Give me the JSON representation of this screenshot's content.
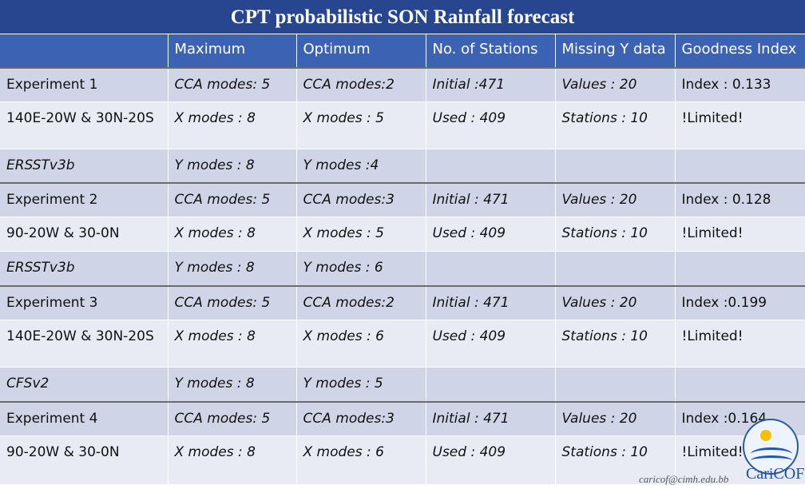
{
  "title": "CPT probabilistic SON Rainfall forecast",
  "headers": [
    "",
    "Maximum",
    "Optimum",
    "No. of Stations",
    "Missing Y data",
    "Goodness Index"
  ],
  "experiments": [
    {
      "rows": [
        [
          "Experiment 1",
          "CCA modes: 5",
          "CCA modes:2",
          "Initial :471",
          "Values : 20",
          "Index : 0.133"
        ],
        [
          "140E-20W & 30N-20S",
          "X modes : 8",
          "X modes : 5",
          "Used : 409",
          "Stations : 10",
          "!Limited!"
        ],
        [
          "ERSSTv3b",
          "Y modes : 8",
          "Y modes :4",
          "",
          "",
          ""
        ]
      ]
    },
    {
      "rows": [
        [
          "Experiment 2",
          "CCA modes: 5",
          "CCA modes:3",
          "Initial : 471",
          "Values : 20",
          "Index : 0.128"
        ],
        [
          "90-20W & 30-0N",
          "X modes : 8",
          "X modes : 5",
          "Used : 409",
          "Stations : 10",
          "!Limited!"
        ],
        [
          "ERSSTv3b",
          "Y modes : 8",
          "Y modes : 6",
          "",
          "",
          ""
        ]
      ]
    },
    {
      "rows": [
        [
          "Experiment 3",
          "CCA modes: 5",
          "CCA modes:2",
          "Initial : 471",
          "Values : 20",
          "Index :0.199"
        ],
        [
          "140E-20W & 30N-20S",
          "X modes : 8",
          "X modes : 6",
          "Used : 409",
          "Stations : 10",
          "!Limited!"
        ],
        [
          "CFSv2",
          "Y modes : 8",
          "Y modes : 5",
          "",
          "",
          ""
        ]
      ]
    },
    {
      "rows": [
        [
          "Experiment 4",
          "CCA modes: 5",
          "CCA modes:3",
          "Initial : 471",
          "Values : 20",
          "Index :0.164"
        ],
        [
          "90-20W & 30-0N",
          "X modes : 8",
          "X modes : 6",
          "Used : 409",
          "Stations : 10",
          "!Limited!"
        ]
      ]
    }
  ],
  "footer": "caricof@cimh.edu.bb",
  "logo_text": "CariCOF"
}
